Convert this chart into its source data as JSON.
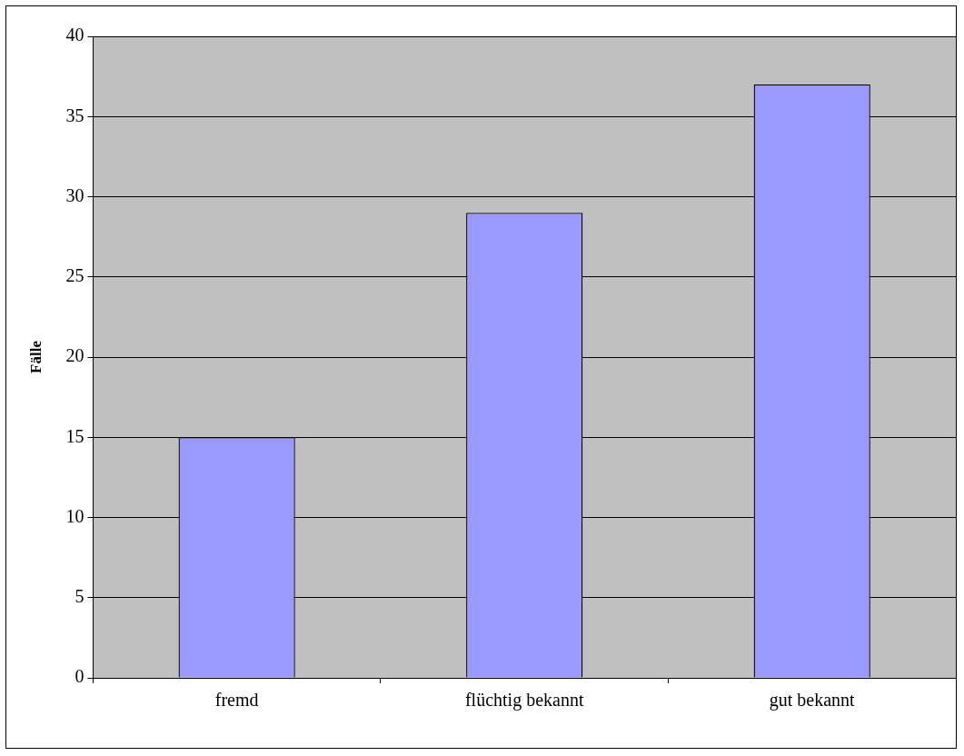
{
  "chart_data": {
    "type": "bar",
    "ylabel": "Fälle",
    "categories": [
      "fremd",
      "flüchtig bekannt",
      "gut bekannt"
    ],
    "values": [
      15,
      29,
      37
    ],
    "color": "#9999ff",
    "ylim": [
      0,
      40
    ],
    "yticks": [
      0,
      5,
      10,
      15,
      20,
      25,
      30,
      35,
      40
    ],
    "grid": "y",
    "legend": false
  }
}
